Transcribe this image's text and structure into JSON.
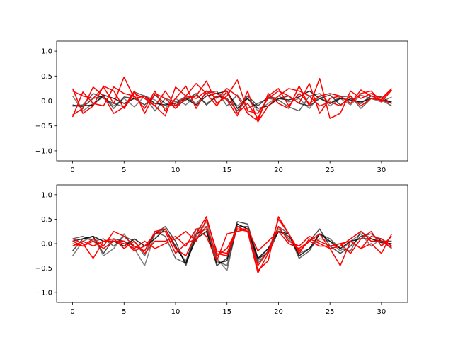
{
  "colors": {
    "gray_series": "#000000",
    "red_series": "#ff0000",
    "axes": "#000000",
    "background": "#ffffff"
  },
  "chart_data": [
    {
      "type": "line",
      "title": "",
      "xlabel": "",
      "ylabel": "",
      "xlim": [
        -1.55,
        32.55
      ],
      "ylim": [
        -1.2,
        1.2
      ],
      "xticks": [
        0,
        5,
        10,
        15,
        20,
        25,
        30
      ],
      "xtick_labels": [
        "0",
        "5",
        "10",
        "15",
        "20",
        "25",
        "30"
      ],
      "yticks": [
        1.0,
        0.5,
        0.0,
        -0.5,
        -1.0
      ],
      "ytick_labels": [
        "1.0",
        "0.5",
        "0.0",
        "−0.5",
        "−1.0"
      ],
      "grid": false,
      "x": [
        0,
        1,
        2,
        3,
        4,
        5,
        6,
        7,
        8,
        9,
        10,
        11,
        12,
        13,
        14,
        15,
        16,
        17,
        18,
        19,
        20,
        21,
        22,
        23,
        24,
        25,
        26,
        27,
        28,
        29,
        30,
        31
      ],
      "series": [
        {
          "group": "gray",
          "opacity": 0.5,
          "values": [
            0.1,
            -0.2,
            -0.05,
            0.08,
            -0.1,
            0.05,
            -0.12,
            0.1,
            0.02,
            -0.15,
            0.05,
            -0.08,
            0.12,
            -0.05,
            0.08,
            0.15,
            -0.1,
            0.05,
            -0.2,
            -0.05,
            0.1,
            -0.02,
            0.05,
            -0.15,
            0.1,
            -0.1,
            0.05,
            -0.08,
            0.12,
            0.05,
            -0.02,
            0.08
          ]
        },
        {
          "group": "gray",
          "opacity": 0.6,
          "values": [
            -0.1,
            -0.08,
            0.15,
            0.05,
            -0.05,
            -0.12,
            0.18,
            0.1,
            -0.2,
            0.05,
            -0.02,
            0.08,
            -0.05,
            0.15,
            0.2,
            -0.1,
            0.12,
            -0.15,
            -0.05,
            0.05,
            0.02,
            -0.12,
            -0.2,
            0.1,
            0.15,
            -0.05,
            0.08,
            0.1,
            -0.15,
            0.05,
            0.02,
            -0.1
          ]
        },
        {
          "group": "gray",
          "opacity": 0.7,
          "values": [
            -0.08,
            -0.12,
            0.05,
            0.1,
            -0.15,
            0.08,
            0.05,
            -0.08,
            0.12,
            -0.05,
            -0.1,
            0.02,
            0.15,
            -0.08,
            0.1,
            0.05,
            -0.2,
            0.1,
            -0.1,
            0.08,
            0.05,
            0.1,
            -0.05,
            -0.1,
            0.05,
            0.12,
            -0.08,
            0.05,
            -0.05,
            0.1,
            0.08,
            -0.05
          ]
        },
        {
          "group": "gray",
          "opacity": 0.85,
          "values": [
            -0.1,
            -0.1,
            -0.08,
            0.12,
            0.05,
            -0.05,
            0.05,
            0.1,
            -0.05,
            -0.08,
            -0.05,
            0.05,
            -0.08,
            0.1,
            0.15,
            0.2,
            -0.15,
            0.05,
            -0.15,
            -0.1,
            0.05,
            0.02,
            0.08,
            0.2,
            0.05,
            -0.05,
            0.05,
            0.02,
            -0.02,
            0.05,
            0.02,
            -0.02
          ]
        },
        {
          "group": "red",
          "opacity": 1,
          "values": [
            0.25,
            -0.25,
            -0.1,
            0.3,
            0.2,
            -0.15,
            0.15,
            0.05,
            -0.1,
            0.2,
            -0.1,
            0.1,
            0.35,
            0.15,
            -0.1,
            0.2,
            -0.25,
            -0.05,
            -0.35,
            0.1,
            0.25,
            -0.1,
            0.15,
            -0.05,
            0.1,
            0.15,
            0.1,
            -0.05,
            0.15,
            0.2,
            -0.02,
            0.22
          ]
        },
        {
          "group": "red",
          "opacity": 1,
          "values": [
            -0.32,
            0.18,
            -0.05,
            -0.1,
            0.28,
            0.15,
            0.1,
            -0.15,
            0.2,
            -0.2,
            0.05,
            0.3,
            -0.15,
            0.2,
            0.05,
            0.25,
            0.1,
            -0.25,
            -0.4,
            0.15,
            -0.05,
            -0.15,
            0.3,
            -0.1,
            0.45,
            -0.35,
            -0.25,
            0.2,
            0.05,
            0.15,
            0.05,
            0.25
          ]
        },
        {
          "group": "red",
          "opacity": 1,
          "values": [
            -0.28,
            -0.15,
            0.28,
            0.1,
            -0.25,
            -0.12,
            0.2,
            -0.25,
            0.15,
            0.05,
            -0.15,
            0.05,
            0.1,
            0.4,
            -0.05,
            0.1,
            0.42,
            -0.2,
            -0.25,
            0.05,
            0.2,
            0.1,
            -0.05,
            0.35,
            -0.25,
            0.05,
            0.1,
            -0.05,
            0.22,
            0.1,
            0.02,
            0.25
          ]
        },
        {
          "group": "red",
          "opacity": 1,
          "values": [
            0.2,
            0.1,
            0.05,
            0.28,
            -0.05,
            0.48,
            0.05,
            0.1,
            -0.1,
            -0.3,
            0.28,
            0.1,
            0.05,
            0.2,
            0.15,
            0.02,
            -0.3,
            0.2,
            -0.42,
            -0.1,
            0.1,
            0.25,
            0.2,
            0.1,
            -0.1,
            -0.02,
            -0.1,
            0.1,
            -0.1,
            0.05,
            0.02,
            -0.05
          ]
        }
      ]
    },
    {
      "type": "line",
      "title": "",
      "xlabel": "",
      "ylabel": "",
      "xlim": [
        -1.55,
        32.55
      ],
      "ylim": [
        -1.2,
        1.2
      ],
      "xticks": [
        0,
        5,
        10,
        15,
        20,
        25,
        30
      ],
      "xtick_labels": [
        "0",
        "5",
        "10",
        "15",
        "20",
        "25",
        "30"
      ],
      "yticks": [
        1.0,
        0.5,
        0.0,
        -0.5,
        -1.0
      ],
      "ytick_labels": [
        "1.0",
        "0.5",
        "0.0",
        "−0.5",
        "−1.0"
      ],
      "grid": false,
      "x": [
        0,
        1,
        2,
        3,
        4,
        5,
        6,
        7,
        8,
        9,
        10,
        11,
        12,
        13,
        14,
        15,
        16,
        17,
        18,
        19,
        20,
        21,
        22,
        23,
        24,
        25,
        26,
        27,
        28,
        29,
        30,
        31
      ],
      "series": [
        {
          "group": "gray",
          "opacity": 0.5,
          "values": [
            -0.25,
            0.05,
            0.15,
            -0.25,
            -0.1,
            0.2,
            -0.1,
            -0.45,
            0.2,
            0.3,
            -0.1,
            -0.35,
            0.15,
            0.45,
            -0.3,
            -0.55,
            0.4,
            0.3,
            -0.35,
            -0.1,
            0.3,
            0.1,
            -0.2,
            -0.1,
            0.1,
            0.05,
            -0.15,
            0.05,
            0.2,
            -0.05,
            0.1,
            -0.05
          ]
        },
        {
          "group": "gray",
          "opacity": 0.6,
          "values": [
            0.1,
            0.15,
            0.05,
            0.1,
            -0.05,
            0.15,
            0.05,
            -0.25,
            0.25,
            0.15,
            -0.3,
            -0.4,
            0.3,
            0.35,
            -0.35,
            -0.45,
            0.35,
            0.35,
            -0.4,
            -0.15,
            0.35,
            0.2,
            -0.3,
            -0.15,
            0.2,
            0.1,
            -0.1,
            -0.15,
            0.25,
            0.1,
            0.05,
            -0.1
          ]
        },
        {
          "group": "gray",
          "opacity": 0.7,
          "values": [
            -0.15,
            0.1,
            0.15,
            -0.2,
            0.1,
            0.05,
            -0.05,
            -0.15,
            0.2,
            0.35,
            0.05,
            -0.45,
            0.2,
            0.3,
            -0.45,
            -0.3,
            0.45,
            0.4,
            -0.3,
            -0.2,
            0.25,
            0.15,
            -0.15,
            0.05,
            0.3,
            -0.05,
            -0.2,
            -0.05,
            0.15,
            0.2,
            0.05,
            0.05
          ]
        },
        {
          "group": "gray",
          "opacity": 0.85,
          "values": [
            0.05,
            0.1,
            0.15,
            0.05,
            0.05,
            -0.05,
            0.1,
            -0.05,
            0.1,
            0.3,
            -0.05,
            -0.4,
            0.1,
            0.25,
            -0.4,
            -0.35,
            0.4,
            0.3,
            -0.3,
            -0.1,
            0.25,
            0.2,
            -0.25,
            -0.1,
            0.2,
            0.05,
            -0.1,
            0.05,
            0.1,
            0.1,
            0.02,
            0.0
          ]
        },
        {
          "group": "red",
          "opacity": 1,
          "values": [
            0.05,
            -0.05,
            0.1,
            -0.05,
            0.25,
            0.15,
            -0.05,
            -0.15,
            0.25,
            0.3,
            -0.1,
            -0.25,
            0.2,
            0.55,
            -0.2,
            -0.25,
            0.3,
            0.25,
            -0.6,
            -0.2,
            0.5,
            0.2,
            -0.2,
            0.1,
            0.0,
            -0.1,
            -0.05,
            0.1,
            0.25,
            0.05,
            0.05,
            -0.08
          ]
        },
        {
          "group": "red",
          "opacity": 1,
          "values": [
            -0.05,
            0.05,
            -0.05,
            0.05,
            0.1,
            -0.1,
            0.05,
            -0.2,
            0.05,
            0.05,
            0.15,
            -0.05,
            0.3,
            0.15,
            -0.35,
            0.2,
            0.25,
            0.3,
            -0.55,
            -0.35,
            0.55,
            0.2,
            -0.15,
            0.05,
            0.2,
            -0.1,
            -0.45,
            0.05,
            -0.1,
            0.15,
            0.1,
            -0.05
          ]
        },
        {
          "group": "red",
          "opacity": 1,
          "values": [
            0.0,
            -0.05,
            0.05,
            -0.1,
            0.05,
            0.0,
            -0.1,
            0.05,
            -0.1,
            0.0,
            0.1,
            0.25,
            0.05,
            0.5,
            -0.15,
            -0.2,
            0.35,
            0.25,
            -0.45,
            -0.15,
            0.35,
            0.05,
            -0.05,
            0.15,
            0.05,
            -0.05,
            0.0,
            -0.2,
            0.1,
            0.25,
            -0.05,
            0.15
          ]
        },
        {
          "group": "red",
          "opacity": 1,
          "values": [
            0.1,
            0.0,
            -0.3,
            0.05,
            0.05,
            0.05,
            -0.15,
            -0.05,
            0.2,
            0.25,
            -0.2,
            0.0,
            0.1,
            0.35,
            -0.25,
            -0.1,
            0.3,
            0.3,
            -0.15,
            0.05,
            0.25,
            0.0,
            -0.1,
            0.05,
            -0.05,
            -0.05,
            0.0,
            0.05,
            -0.1,
            0.0,
            -0.2,
            0.2
          ]
        }
      ]
    }
  ]
}
